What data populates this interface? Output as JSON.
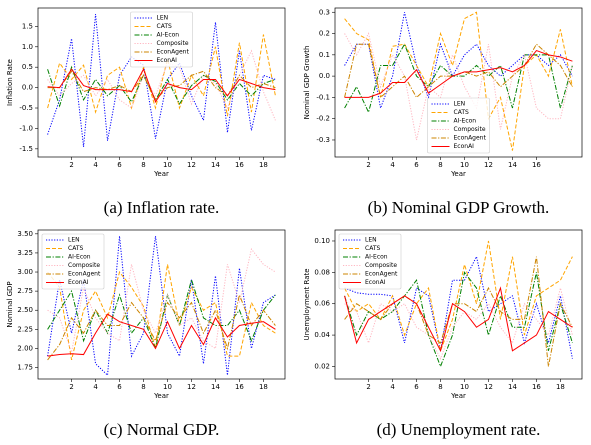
{
  "chart_data": [
    {
      "type": "line",
      "caption": "(a) Inflation rate.",
      "xlabel": "Year",
      "ylabel": "Inflation Rate",
      "x": [
        0,
        1,
        2,
        3,
        4,
        5,
        6,
        7,
        8,
        9,
        10,
        11,
        12,
        13,
        14,
        15,
        16,
        17,
        18,
        19
      ],
      "xlim": [
        -0.8,
        19.8
      ],
      "xticks": [
        2,
        4,
        6,
        8,
        10,
        12,
        14,
        16,
        18
      ],
      "ylim": [
        -1.7,
        1.95
      ],
      "yticks": [
        -1.5,
        {
          "value": -1.0,
          "label": "-1.0"
        },
        -0.5,
        {
          "value": 0,
          "label": "0.0"
        },
        0.5,
        {
          "value": 1.0,
          "label": "1.0"
        },
        1.5
      ],
      "legend": "upper center",
      "series": [
        {
          "name": "LEN",
          "color": "#0000ff",
          "linestyle": "dotted",
          "values": [
            -1.15,
            -0.3,
            1.2,
            -1.45,
            1.8,
            -1.3,
            0.3,
            0.75,
            0.55,
            -1.25,
            0.2,
            0.6,
            -0.2,
            -0.8,
            1.6,
            -1.1,
            0.9,
            -1.05,
            0.3,
            0.2
          ]
        },
        {
          "name": "CATS",
          "color": "#ffa500",
          "linestyle": "dashed",
          "values": [
            -0.5,
            0.6,
            0.2,
            0.55,
            -0.6,
            0.3,
            0.5,
            -0.5,
            0.5,
            -0.5,
            0.7,
            -0.5,
            0.3,
            -0.2,
            1.0,
            -0.7,
            1.1,
            -0.6,
            1.3,
            -0.2
          ]
        },
        {
          "name": "AI-Econ",
          "color": "#008000",
          "linestyle": "dashdot",
          "values": [
            0.45,
            -0.45,
            0.5,
            -0.3,
            0.2,
            -0.2,
            0.05,
            -0.35,
            0.3,
            -0.3,
            0.2,
            -0.4,
            0.05,
            0.3,
            0.15,
            -0.3,
            0.1,
            -0.2,
            0.1,
            0.2
          ]
        },
        {
          "name": "Composite",
          "color": "#ffb6c1",
          "linestyle": "dotted",
          "values": [
            0.2,
            -0.2,
            0.1,
            0.3,
            -0.2,
            0.2,
            -0.3,
            -0.5,
            0.3,
            -0.2,
            0.6,
            0.5,
            -0.4,
            0.3,
            0.1,
            -0.5,
            0.3,
            0.9,
            -0.1,
            -0.8
          ]
        },
        {
          "name": "EconAgent",
          "color": "#cc8400",
          "linestyle": "dashdot",
          "values": [
            0.0,
            0.0,
            0.4,
            -0.1,
            0.0,
            -0.05,
            0.05,
            -0.1,
            0.3,
            -0.3,
            0.0,
            0.05,
            0.3,
            0.4,
            0.0,
            -0.2,
            0.3,
            0.0,
            0.1,
            0.0
          ]
        },
        {
          "name": "EconAI",
          "color": "#ff0000",
          "linestyle": "solid",
          "values": [
            0.02,
            0.0,
            0.45,
            0.05,
            -0.05,
            -0.05,
            -0.05,
            -0.1,
            0.45,
            -0.35,
            0.1,
            0.0,
            -0.05,
            0.2,
            0.2,
            -0.2,
            0.2,
            0.1,
            0.0,
            -0.05
          ]
        }
      ]
    },
    {
      "type": "line",
      "caption": "(b) Nominal GDP Growth.",
      "xlabel": "Year",
      "ylabel": "Nominal GDP Growth",
      "x": [
        0,
        1,
        2,
        3,
        4,
        5,
        6,
        7,
        8,
        9,
        10,
        11,
        12,
        13,
        14,
        15,
        16,
        17,
        18,
        19
      ],
      "xlim": [
        -0.8,
        19.8
      ],
      "xticks": [
        2,
        4,
        6,
        8,
        10,
        12,
        14,
        16
      ],
      "ylim": [
        -0.38,
        0.32
      ],
      "yticks": [
        -0.3,
        -0.2,
        -0.1,
        {
          "value": 0,
          "label": "0.0"
        },
        0.1,
        0.2,
        0.3
      ],
      "legend": "lower center",
      "series": [
        {
          "name": "LEN",
          "color": "#0000ff",
          "linestyle": "dotted",
          "values": [
            0.05,
            0.15,
            0.15,
            -0.15,
            0.0,
            0.3,
            0.05,
            -0.1,
            0.15,
            0.0,
            0.1,
            0.15,
            0.05,
            0.0,
            0.05,
            0.1,
            0.1,
            0.05,
            0.1,
            0.0
          ]
        },
        {
          "name": "CATS",
          "color": "#ffa500",
          "linestyle": "dashed",
          "values": [
            0.27,
            0.2,
            0.17,
            -0.1,
            0.14,
            0.15,
            0.05,
            -0.05,
            0.2,
            0.05,
            0.27,
            0.3,
            -0.2,
            -0.1,
            -0.35,
            0.05,
            0.1,
            0.0,
            0.22,
            -0.05
          ]
        },
        {
          "name": "AI-Econ",
          "color": "#008000",
          "linestyle": "dashdot",
          "values": [
            -0.15,
            -0.05,
            -0.17,
            0.05,
            0.05,
            0.15,
            0.0,
            -0.05,
            0.05,
            0.0,
            0.0,
            0.05,
            0.0,
            0.05,
            -0.15,
            0.1,
            0.1,
            0.1,
            -0.15,
            0.05
          ]
        },
        {
          "name": "Composite",
          "color": "#ffb6c1",
          "linestyle": "dotted",
          "values": [
            0.2,
            0.1,
            0.2,
            -0.05,
            0.1,
            0.0,
            -0.3,
            -0.05,
            -0.1,
            0.1,
            -0.05,
            -0.15,
            0.15,
            -0.25,
            0.0,
            0.1,
            -0.15,
            -0.2,
            -0.2,
            0.05
          ]
        },
        {
          "name": "EconAgent",
          "color": "#cc8400",
          "linestyle": "dashdot",
          "values": [
            -0.1,
            0.15,
            0.15,
            -0.1,
            -0.05,
            0.0,
            -0.1,
            -0.05,
            0.0,
            0.0,
            0.02,
            0.0,
            0.02,
            -0.05,
            0.0,
            0.05,
            0.15,
            0.1,
            0.05,
            -0.05
          ]
        },
        {
          "name": "EconAI",
          "color": "#ff0000",
          "linestyle": "solid",
          "values": [
            -0.1,
            -0.1,
            -0.1,
            -0.08,
            -0.03,
            -0.03,
            0.03,
            -0.08,
            -0.04,
            0.0,
            0.02,
            0.02,
            0.03,
            0.04,
            0.02,
            0.05,
            0.12,
            0.1,
            0.09,
            0.07
          ]
        }
      ]
    },
    {
      "type": "line",
      "caption": "(c) Normal GDP.",
      "xlabel": "Year",
      "ylabel": "Nominal GDP",
      "x": [
        0,
        1,
        2,
        3,
        4,
        5,
        6,
        7,
        8,
        9,
        10,
        11,
        12,
        13,
        14,
        15,
        16,
        17,
        18,
        19
      ],
      "xlim": [
        -0.8,
        19.8
      ],
      "xticks": [
        2,
        4,
        6,
        8,
        10,
        12,
        14,
        16,
        18
      ],
      "ylim": [
        1.6,
        3.55
      ],
      "yticks": [
        1.75,
        {
          "value": 2.0,
          "label": "2.00"
        },
        2.25,
        {
          "value": 2.5,
          "label": "2.50"
        },
        2.75,
        {
          "value": 3.0,
          "label": "3.00"
        },
        3.25,
        {
          "value": 3.5,
          "label": "3.50"
        }
      ],
      "legend": "upper left",
      "series": [
        {
          "name": "LEN",
          "color": "#0000ff",
          "linestyle": "dotted",
          "values": [
            1.9,
            2.9,
            2.2,
            2.9,
            1.8,
            1.65,
            3.47,
            1.9,
            2.2,
            3.47,
            2.2,
            1.9,
            2.9,
            1.8,
            2.95,
            1.65,
            3.05,
            2.0,
            2.6,
            2.7
          ]
        },
        {
          "name": "CATS",
          "color": "#ffa500",
          "linestyle": "dashed",
          "values": [
            3.0,
            2.8,
            1.85,
            2.5,
            2.75,
            2.4,
            3.0,
            2.8,
            2.55,
            2.0,
            3.1,
            2.3,
            2.8,
            2.5,
            2.6,
            1.9,
            1.9,
            2.6,
            2.3,
            2.2
          ]
        },
        {
          "name": "AI-Econ",
          "color": "#008000",
          "linestyle": "dashdot",
          "values": [
            2.25,
            2.5,
            2.75,
            2.1,
            2.5,
            2.2,
            2.7,
            2.2,
            2.4,
            2.0,
            2.7,
            2.3,
            2.9,
            2.4,
            2.3,
            2.3,
            2.5,
            2.1,
            2.5,
            2.7
          ]
        },
        {
          "name": "Composite",
          "color": "#ffb6c1",
          "linestyle": "dotted",
          "values": [
            2.5,
            2.4,
            1.95,
            2.8,
            2.4,
            2.2,
            2.1,
            3.1,
            2.5,
            2.2,
            2.7,
            2.3,
            2.4,
            2.1,
            2.0,
            3.1,
            2.6,
            3.3,
            3.1,
            3.0
          ]
        },
        {
          "name": "EconAgent",
          "color": "#cc8400",
          "linestyle": "dashdot",
          "values": [
            1.85,
            2.05,
            2.4,
            2.2,
            2.5,
            2.3,
            2.3,
            2.6,
            2.4,
            2.1,
            2.6,
            2.4,
            2.6,
            2.2,
            2.5,
            2.0,
            2.7,
            2.3,
            2.5,
            2.3
          ]
        },
        {
          "name": "EconAI",
          "color": "#ff0000",
          "linestyle": "solid",
          "values": [
            1.9,
            1.92,
            1.93,
            1.92,
            2.2,
            2.45,
            2.35,
            2.3,
            2.25,
            2.0,
            2.35,
            2.0,
            2.3,
            2.05,
            2.4,
            2.15,
            2.3,
            2.33,
            2.35,
            2.25
          ]
        }
      ]
    },
    {
      "type": "line",
      "caption": "(d) Unemployment rate.",
      "xlabel": "Year",
      "ylabel": "Unemployment Rate",
      "x": [
        0,
        1,
        2,
        3,
        4,
        5,
        6,
        7,
        8,
        9,
        10,
        11,
        12,
        13,
        14,
        15,
        16,
        17,
        18,
        19
      ],
      "xlim": [
        -0.8,
        19.8
      ],
      "xticks": [
        2,
        4,
        6,
        8,
        10,
        12,
        14,
        16,
        18
      ],
      "ylim": [
        0.012,
        0.107
      ],
      "yticks": [
        0.02,
        0.04,
        0.06,
        0.08,
        {
          "value": 0.1,
          "label": "0.10"
        }
      ],
      "legend": "upper left",
      "series": [
        {
          "name": "LEN",
          "color": "#0000ff",
          "linestyle": "dotted",
          "values": [
            0.07,
            0.067,
            0.066,
            0.066,
            0.065,
            0.035,
            0.07,
            0.065,
            0.03,
            0.075,
            0.075,
            0.09,
            0.055,
            0.06,
            0.065,
            0.035,
            0.06,
            0.035,
            0.065,
            0.025
          ]
        },
        {
          "name": "CATS",
          "color": "#ffa500",
          "linestyle": "dashed",
          "values": [
            0.07,
            0.055,
            0.06,
            0.05,
            0.065,
            0.04,
            0.06,
            0.07,
            0.03,
            0.05,
            0.085,
            0.06,
            0.1,
            0.05,
            0.09,
            0.04,
            0.065,
            0.07,
            0.075,
            0.09
          ]
        },
        {
          "name": "AI-Econ",
          "color": "#008000",
          "linestyle": "dashdot",
          "values": [
            0.065,
            0.04,
            0.055,
            0.05,
            0.055,
            0.065,
            0.075,
            0.04,
            0.02,
            0.04,
            0.08,
            0.07,
            0.04,
            0.065,
            0.045,
            0.045,
            0.08,
            0.03,
            0.06,
            0.035
          ]
        },
        {
          "name": "Composite",
          "color": "#ffb6c1",
          "linestyle": "dotted",
          "values": [
            0.06,
            0.055,
            0.035,
            0.06,
            0.055,
            0.06,
            0.045,
            0.04,
            0.025,
            0.045,
            0.055,
            0.05,
            0.06,
            0.045,
            0.035,
            0.06,
            0.05,
            0.04,
            0.07,
            0.04
          ]
        },
        {
          "name": "EconAgent",
          "color": "#cc8400",
          "linestyle": "dashdot",
          "values": [
            0.05,
            0.06,
            0.055,
            0.05,
            0.06,
            0.065,
            0.06,
            0.04,
            0.035,
            0.06,
            0.06,
            0.055,
            0.07,
            0.055,
            0.05,
            0.05,
            0.09,
            0.02,
            0.06,
            0.045
          ]
        },
        {
          "name": "EconAI",
          "color": "#ff0000",
          "linestyle": "solid",
          "values": [
            0.065,
            0.035,
            0.05,
            0.055,
            0.06,
            0.065,
            0.06,
            0.045,
            0.03,
            0.06,
            0.055,
            0.045,
            0.05,
            0.07,
            0.03,
            0.035,
            0.04,
            0.055,
            0.05,
            0.045
          ]
        }
      ]
    }
  ]
}
